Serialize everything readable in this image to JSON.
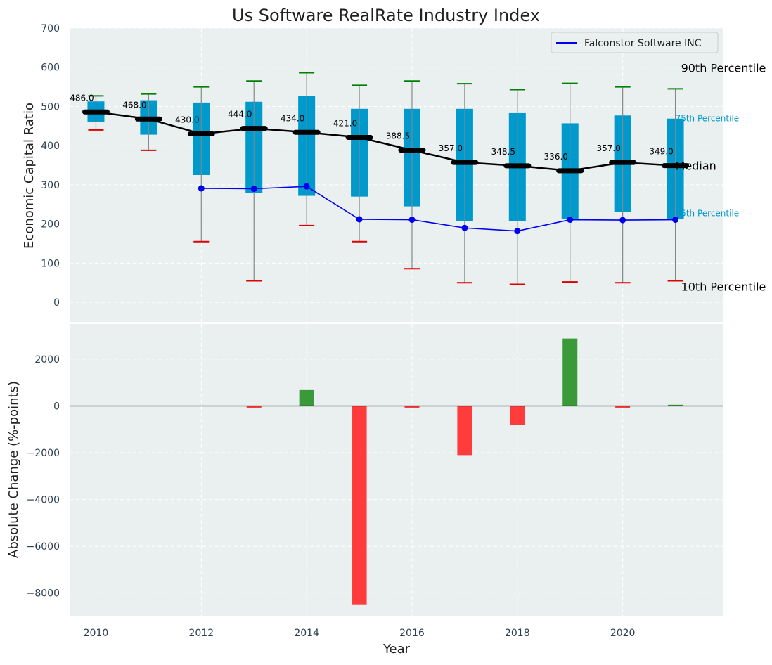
{
  "chart_data": {
    "title": "Us Software RealRate Industry Index",
    "xlabel": "Year",
    "x_ticks": [
      "2010",
      "2012",
      "2014",
      "2016",
      "2018",
      "2020"
    ],
    "xlim": [
      2009.5,
      2021.9
    ],
    "top_panel": {
      "type": "box",
      "ylabel": "Economic Capital Ratio",
      "ylim": [
        -50,
        700
      ],
      "y_ticks": [
        0,
        100,
        200,
        300,
        400,
        500,
        600,
        700
      ],
      "years": [
        2010,
        2011,
        2012,
        2013,
        2014,
        2015,
        2016,
        2017,
        2018,
        2019,
        2020,
        2021
      ],
      "p10": [
        440,
        388,
        155,
        55,
        196,
        155,
        86,
        50,
        46,
        52,
        50,
        55
      ],
      "p25": [
        460,
        428,
        325,
        280,
        272,
        270,
        245,
        207,
        208,
        212,
        230,
        213
      ],
      "median": [
        486.0,
        468.0,
        430.0,
        444.0,
        434.0,
        421.0,
        388.5,
        357.0,
        348.5,
        336.0,
        357.0,
        349.0
      ],
      "median_labels": [
        "486.0",
        "468.0",
        "430.0",
        "444.0",
        "434.0",
        "421.0",
        "388.5",
        "357.0",
        "348.5",
        "336.0",
        "357.0",
        "349.0"
      ],
      "p75": [
        513,
        516,
        510,
        512,
        526,
        494,
        494,
        494,
        483,
        457,
        477,
        469
      ],
      "p90": [
        527,
        532,
        550,
        565,
        586,
        554,
        565,
        558,
        543,
        559,
        550,
        545
      ],
      "company": {
        "name": "Falconstor Software INC",
        "years": [
          2012,
          2013,
          2014,
          2015,
          2016,
          2017,
          2018,
          2019,
          2020,
          2021
        ],
        "values": [
          291,
          290,
          296,
          212,
          211,
          190,
          182,
          211,
          210,
          211
        ]
      },
      "right_labels": {
        "p90": "90th Percentile",
        "p75": "75th Percentile",
        "median": "Median",
        "p25": "25th Percentile",
        "p10": "10th Percentile"
      },
      "legend_position": "top-right"
    },
    "bottom_panel": {
      "type": "bar",
      "ylabel": "Absolute Change (%-points)",
      "ylim": [
        -9000,
        3500
      ],
      "y_ticks": [
        -8000,
        -6000,
        -4000,
        -2000,
        0,
        2000
      ],
      "y_tick_labels": [
        "−8000",
        "−6000",
        "−4000",
        "−2000",
        "0",
        "2000"
      ],
      "years": [
        2013,
        2014,
        2015,
        2016,
        2017,
        2018,
        2019,
        2020,
        2021
      ],
      "values": [
        -100,
        680,
        -8480,
        -100,
        -2100,
        -800,
        2880,
        -100,
        50
      ]
    },
    "colors": {
      "box_fill": "#0099cc",
      "median_line": "#000000",
      "company_line": "#0000ee",
      "p90_cap": "#008000",
      "p10_cap": "#dd0000",
      "whisker": "#888888",
      "bar_positive": "#3a9a3a",
      "bar_negative": "#ff3b3b",
      "panel_bg": "#eaeff0",
      "tick_text": "#2c3e50",
      "p75_p25_label": "#0099cc"
    }
  }
}
